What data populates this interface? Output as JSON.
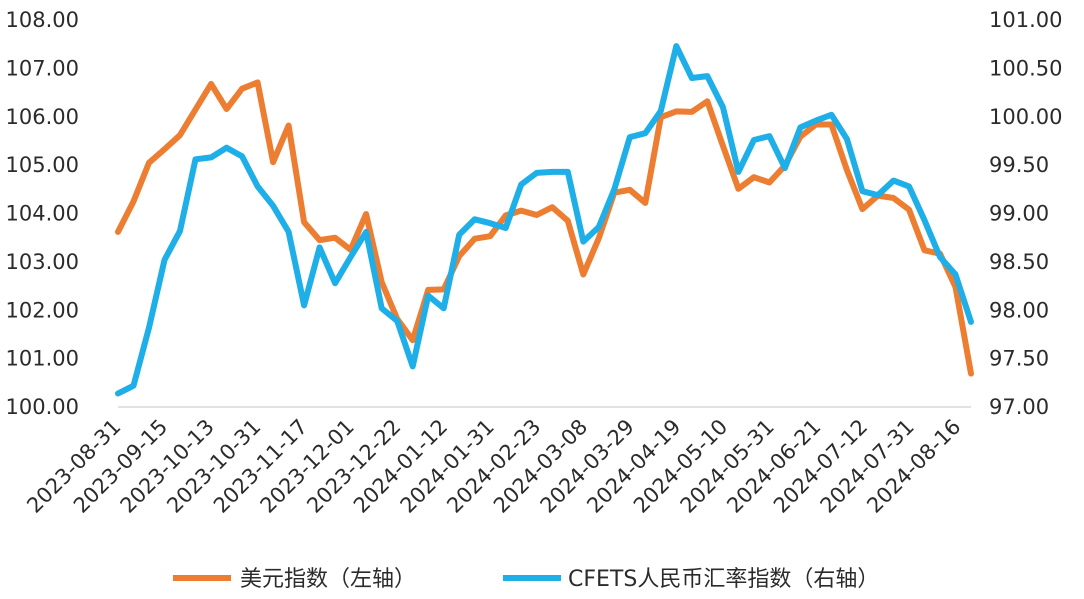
{
  "chart_data": {
    "type": "line",
    "title": "",
    "xlabel": "",
    "x_tick_labels": [
      "2023-08-31",
      "2023-09-15",
      "2023-10-13",
      "2023-10-31",
      "2023-11-17",
      "2023-12-01",
      "2023-12-22",
      "2024-01-12",
      "2024-01-31",
      "2024-02-23",
      "2024-03-08",
      "2024-03-29",
      "2024-04-19",
      "2024-05-10",
      "2024-05-31",
      "2024-06-21",
      "2024-07-12",
      "2024-07-31",
      "2024-08-16"
    ],
    "left_axis": {
      "ylim": [
        100,
        108
      ],
      "tick_labels": [
        "100.00",
        "101.00",
        "102.00",
        "103.00",
        "104.00",
        "105.00",
        "106.00",
        "107.00",
        "108.00"
      ]
    },
    "right_axis": {
      "ylim": [
        97,
        101
      ],
      "tick_labels": [
        "97.00",
        "97.50",
        "98.00",
        "98.50",
        "99.00",
        "99.50",
        "100.00",
        "100.50",
        "101.00"
      ]
    },
    "legend_position": "bottom",
    "series": [
      {
        "name": "美元指数（左轴）",
        "axis": "left",
        "color": "#ED7D31",
        "values": [
          103.62,
          104.25,
          105.05,
          105.33,
          105.62,
          106.15,
          106.68,
          106.16,
          106.58,
          106.71,
          105.06,
          105.82,
          103.82,
          103.45,
          103.5,
          103.25,
          103.99,
          102.58,
          101.82,
          101.38,
          102.42,
          102.43,
          103.12,
          103.48,
          103.53,
          103.96,
          104.06,
          103.97,
          104.13,
          103.85,
          102.74,
          103.49,
          104.43,
          104.49,
          104.22,
          105.99,
          106.11,
          106.1,
          106.32,
          105.4,
          104.51,
          104.75,
          104.64,
          104.99,
          105.59,
          105.84,
          105.84,
          104.9,
          104.09,
          104.37,
          104.32,
          104.08,
          103.24,
          103.17,
          102.48,
          100.69
        ]
      },
      {
        "name": "CFETS人民币汇率指数（右轴）",
        "axis": "right",
        "color": "#1EAEE8",
        "values": [
          97.14,
          97.22,
          97.82,
          98.52,
          98.82,
          99.56,
          99.58,
          99.68,
          99.59,
          99.28,
          99.08,
          98.81,
          98.05,
          98.65,
          98.28,
          98.55,
          98.81,
          98.02,
          97.89,
          97.42,
          98.15,
          98.02,
          98.78,
          98.94,
          98.9,
          98.85,
          99.3,
          99.42,
          99.43,
          99.43,
          98.71,
          98.86,
          99.25,
          99.79,
          99.83,
          100.06,
          100.73,
          100.4,
          100.42,
          100.1,
          99.43,
          99.76,
          99.8,
          99.47,
          99.89,
          99.96,
          100.02,
          99.77,
          99.23,
          99.19,
          99.34,
          99.28,
          98.93,
          98.55,
          98.37,
          97.88
        ]
      }
    ]
  }
}
